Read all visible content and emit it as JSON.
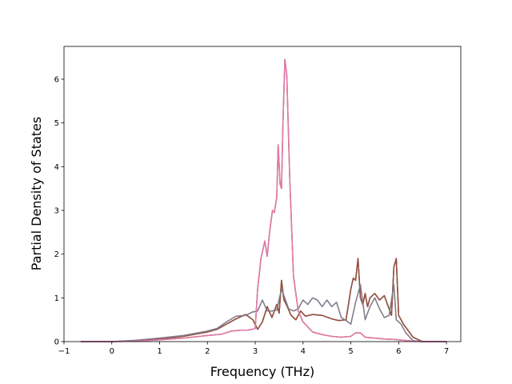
{
  "chart_data": {
    "type": "line",
    "title": "",
    "xlabel": "Frequency (THz)",
    "ylabel": "Partial Density of States",
    "xlim": [
      -1,
      7.3
    ],
    "ylim": [
      0,
      6.75
    ],
    "xticks": [
      -1,
      0,
      1,
      2,
      3,
      4,
      5,
      6,
      7
    ],
    "yticks": [
      0,
      1,
      2,
      3,
      4,
      5,
      6
    ],
    "grid": false,
    "legend": "none",
    "series": [
      {
        "color": "#1f77b4",
        "x": [
          -0.65,
          0,
          0.5,
          1.0,
          1.5,
          2.0,
          2.3,
          2.5,
          2.7,
          2.85,
          3.0,
          3.05,
          3.12,
          3.2,
          3.25,
          3.3,
          3.36,
          3.4,
          3.45,
          3.48,
          3.52,
          3.55,
          3.58,
          3.62,
          3.66,
          3.72,
          3.8,
          3.9,
          4.0,
          4.2,
          4.4,
          4.6,
          4.8,
          5.0,
          5.1,
          5.2,
          5.3,
          5.5,
          5.7,
          5.9,
          6.1,
          6.3,
          6.5,
          7.0
        ],
        "y": [
          0,
          0,
          0.01,
          0.04,
          0.08,
          0.14,
          0.17,
          0.24,
          0.26,
          0.26,
          0.3,
          1.2,
          1.9,
          2.3,
          1.95,
          2.5,
          3.0,
          2.95,
          3.3,
          4.5,
          3.6,
          3.5,
          5.0,
          6.45,
          6.1,
          3.8,
          1.5,
          0.7,
          0.45,
          0.22,
          0.16,
          0.12,
          0.1,
          0.12,
          0.2,
          0.2,
          0.1,
          0.08,
          0.06,
          0.05,
          0.03,
          0.01,
          0,
          0
        ]
      },
      {
        "color": "#ff7f0e",
        "x": [
          -0.65,
          0,
          0.5,
          1.0,
          1.5,
          2.0,
          2.3,
          2.5,
          2.7,
          2.85,
          3.0,
          3.05,
          3.12,
          3.2,
          3.25,
          3.3,
          3.36,
          3.4,
          3.45,
          3.48,
          3.52,
          3.55,
          3.58,
          3.62,
          3.66,
          3.72,
          3.8,
          3.9,
          4.0,
          4.2,
          4.4,
          4.6,
          4.8,
          5.0,
          5.1,
          5.2,
          5.3,
          5.5,
          5.7,
          5.9,
          6.1,
          6.3,
          6.5,
          7.0
        ],
        "y": [
          0,
          0,
          0.01,
          0.04,
          0.08,
          0.14,
          0.17,
          0.24,
          0.26,
          0.26,
          0.3,
          1.2,
          1.9,
          2.3,
          1.95,
          2.5,
          3.0,
          2.95,
          3.3,
          4.5,
          3.6,
          3.5,
          5.0,
          6.45,
          6.1,
          3.8,
          1.5,
          0.7,
          0.45,
          0.22,
          0.16,
          0.12,
          0.1,
          0.12,
          0.2,
          0.2,
          0.1,
          0.08,
          0.06,
          0.05,
          0.03,
          0.01,
          0,
          0
        ]
      },
      {
        "color": "#2ca02c",
        "x": [
          -0.65,
          0,
          0.5,
          1.0,
          1.5,
          2.0,
          2.2,
          2.4,
          2.6,
          2.8,
          2.95,
          3.05,
          3.15,
          3.25,
          3.35,
          3.45,
          3.5,
          3.55,
          3.6,
          3.65,
          3.75,
          3.85,
          3.95,
          4.05,
          4.2,
          4.4,
          4.6,
          4.75,
          4.9,
          5.0,
          5.05,
          5.1,
          5.15,
          5.2,
          5.25,
          5.3,
          5.35,
          5.4,
          5.5,
          5.6,
          5.7,
          5.8,
          5.85,
          5.9,
          5.95,
          6.0,
          6.1,
          6.2,
          6.3,
          6.5,
          7.0
        ],
        "y": [
          0,
          0,
          0.02,
          0.06,
          0.12,
          0.22,
          0.28,
          0.4,
          0.52,
          0.62,
          0.5,
          0.28,
          0.45,
          0.8,
          0.55,
          0.85,
          0.65,
          1.4,
          0.95,
          0.85,
          0.6,
          0.5,
          0.7,
          0.58,
          0.62,
          0.6,
          0.52,
          0.48,
          0.5,
          1.2,
          1.45,
          1.4,
          1.9,
          1.0,
          0.85,
          1.1,
          0.8,
          1.0,
          1.1,
          0.95,
          1.05,
          0.75,
          0.6,
          1.7,
          1.9,
          0.6,
          0.4,
          0.25,
          0.1,
          0,
          0
        ]
      },
      {
        "color": "#d62728",
        "x": [
          -0.65,
          0,
          0.5,
          1.0,
          1.5,
          2.0,
          2.2,
          2.4,
          2.6,
          2.8,
          2.95,
          3.05,
          3.15,
          3.25,
          3.35,
          3.45,
          3.5,
          3.55,
          3.6,
          3.65,
          3.75,
          3.85,
          3.95,
          4.05,
          4.2,
          4.4,
          4.6,
          4.75,
          4.9,
          5.0,
          5.05,
          5.1,
          5.15,
          5.2,
          5.25,
          5.3,
          5.35,
          5.4,
          5.5,
          5.6,
          5.7,
          5.8,
          5.85,
          5.9,
          5.95,
          6.0,
          6.1,
          6.2,
          6.3,
          6.5,
          7.0
        ],
        "y": [
          0,
          0,
          0.02,
          0.06,
          0.12,
          0.22,
          0.28,
          0.4,
          0.52,
          0.62,
          0.5,
          0.28,
          0.45,
          0.8,
          0.55,
          0.85,
          0.65,
          1.4,
          0.95,
          0.85,
          0.6,
          0.5,
          0.7,
          0.58,
          0.62,
          0.6,
          0.52,
          0.48,
          0.5,
          1.2,
          1.45,
          1.4,
          1.9,
          1.0,
          0.85,
          1.1,
          0.8,
          1.0,
          1.1,
          0.95,
          1.05,
          0.75,
          0.6,
          1.7,
          1.9,
          0.6,
          0.4,
          0.25,
          0.1,
          0,
          0
        ]
      },
      {
        "color": "#9467bd",
        "x": [
          -0.65,
          0,
          0.5,
          1.0,
          1.5,
          2.0,
          2.2,
          2.4,
          2.6,
          2.8,
          2.95,
          3.05,
          3.15,
          3.25,
          3.35,
          3.45,
          3.55,
          3.6,
          3.7,
          3.8,
          3.9,
          4.0,
          4.1,
          4.2,
          4.3,
          4.4,
          4.5,
          4.6,
          4.7,
          4.8,
          4.9,
          5.0,
          5.1,
          5.2,
          5.3,
          5.4,
          5.5,
          5.6,
          5.7,
          5.8,
          5.9,
          5.95,
          6.05,
          6.15,
          6.3,
          6.5,
          7.0
        ],
        "y": [
          0,
          0,
          0.03,
          0.08,
          0.14,
          0.24,
          0.3,
          0.45,
          0.58,
          0.6,
          0.68,
          0.7,
          0.95,
          0.7,
          0.7,
          0.72,
          1.2,
          1.05,
          0.75,
          0.7,
          0.75,
          0.95,
          0.85,
          1.0,
          0.95,
          0.8,
          0.95,
          0.8,
          0.9,
          0.55,
          0.48,
          0.4,
          0.9,
          1.3,
          0.5,
          0.8,
          1.0,
          0.75,
          0.55,
          0.6,
          1.3,
          0.5,
          0.4,
          0.2,
          0.02,
          0,
          0
        ]
      },
      {
        "color": "#8c564b",
        "x": [
          -0.65,
          0,
          0.5,
          1.0,
          1.5,
          2.0,
          2.2,
          2.4,
          2.6,
          2.8,
          2.95,
          3.05,
          3.15,
          3.25,
          3.35,
          3.45,
          3.5,
          3.55,
          3.6,
          3.65,
          3.75,
          3.85,
          3.95,
          4.05,
          4.2,
          4.4,
          4.6,
          4.75,
          4.9,
          5.0,
          5.05,
          5.1,
          5.15,
          5.2,
          5.25,
          5.3,
          5.35,
          5.4,
          5.5,
          5.6,
          5.7,
          5.8,
          5.85,
          5.9,
          5.95,
          6.0,
          6.1,
          6.2,
          6.3,
          6.5,
          7.0
        ],
        "y": [
          0,
          0,
          0.02,
          0.06,
          0.12,
          0.22,
          0.28,
          0.4,
          0.52,
          0.62,
          0.5,
          0.28,
          0.45,
          0.8,
          0.55,
          0.85,
          0.65,
          1.4,
          0.95,
          0.85,
          0.6,
          0.5,
          0.7,
          0.58,
          0.62,
          0.6,
          0.52,
          0.48,
          0.5,
          1.2,
          1.45,
          1.4,
          1.9,
          1.0,
          0.85,
          1.1,
          0.8,
          1.0,
          1.1,
          0.95,
          1.05,
          0.75,
          0.6,
          1.7,
          1.9,
          0.6,
          0.4,
          0.25,
          0.1,
          0,
          0
        ]
      },
      {
        "color": "#7f7f7f",
        "x": [
          -0.65,
          0,
          0.5,
          1.0,
          1.5,
          2.0,
          2.2,
          2.4,
          2.6,
          2.8,
          2.95,
          3.05,
          3.15,
          3.25,
          3.35,
          3.45,
          3.55,
          3.6,
          3.7,
          3.8,
          3.9,
          4.0,
          4.1,
          4.2,
          4.3,
          4.4,
          4.5,
          4.6,
          4.7,
          4.8,
          4.9,
          5.0,
          5.1,
          5.2,
          5.3,
          5.4,
          5.5,
          5.6,
          5.7,
          5.8,
          5.9,
          5.95,
          6.05,
          6.15,
          6.3,
          6.5,
          7.0
        ],
        "y": [
          0,
          0,
          0.03,
          0.08,
          0.14,
          0.24,
          0.3,
          0.45,
          0.58,
          0.6,
          0.68,
          0.7,
          0.95,
          0.7,
          0.7,
          0.72,
          1.2,
          1.05,
          0.75,
          0.7,
          0.75,
          0.95,
          0.85,
          1.0,
          0.95,
          0.8,
          0.95,
          0.8,
          0.9,
          0.55,
          0.48,
          0.4,
          0.9,
          1.3,
          0.5,
          0.8,
          1.0,
          0.75,
          0.55,
          0.6,
          1.3,
          0.5,
          0.4,
          0.2,
          0.02,
          0,
          0
        ]
      },
      {
        "color": "#e377c2",
        "x": [
          -0.65,
          0,
          0.5,
          1.0,
          1.5,
          2.0,
          2.3,
          2.5,
          2.7,
          2.85,
          3.0,
          3.05,
          3.12,
          3.2,
          3.25,
          3.3,
          3.36,
          3.4,
          3.45,
          3.48,
          3.52,
          3.55,
          3.58,
          3.62,
          3.66,
          3.72,
          3.8,
          3.9,
          4.0,
          4.2,
          4.4,
          4.6,
          4.8,
          5.0,
          5.1,
          5.2,
          5.3,
          5.5,
          5.7,
          5.9,
          6.1,
          6.3,
          6.5,
          7.0
        ],
        "y": [
          0,
          0,
          0.01,
          0.04,
          0.08,
          0.14,
          0.17,
          0.24,
          0.26,
          0.26,
          0.3,
          1.2,
          1.9,
          2.3,
          1.95,
          2.5,
          3.0,
          2.95,
          3.3,
          4.5,
          3.6,
          3.5,
          5.0,
          6.45,
          6.1,
          3.8,
          1.5,
          0.7,
          0.45,
          0.22,
          0.16,
          0.12,
          0.1,
          0.12,
          0.2,
          0.2,
          0.1,
          0.08,
          0.06,
          0.05,
          0.03,
          0.01,
          0,
          0
        ]
      }
    ]
  }
}
